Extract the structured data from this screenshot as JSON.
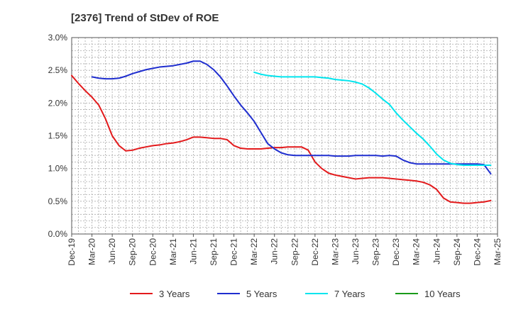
{
  "chart_data": {
    "type": "line",
    "title": "[2376]  Trend of StDev of ROE",
    "xlabel": "",
    "ylabel": "",
    "x_ticks": [
      "Dec-19",
      "Mar-20",
      "Jun-20",
      "Sep-20",
      "Dec-20",
      "Mar-21",
      "Jun-21",
      "Sep-21",
      "Dec-21",
      "Mar-22",
      "Jun-22",
      "Sep-22",
      "Dec-22",
      "Mar-23",
      "Jun-23",
      "Sep-23",
      "Dec-23",
      "Mar-24",
      "Jun-24",
      "Sep-24",
      "Dec-24",
      "Mar-25"
    ],
    "y_ticks": [
      "0.0%",
      "0.5%",
      "1.0%",
      "1.5%",
      "2.0%",
      "2.5%",
      "3.0%"
    ],
    "ylim": [
      0,
      3.0
    ],
    "grid": "dashed",
    "legend_position": "bottom",
    "series": [
      {
        "name": "3 Years",
        "color": "#e31a1c",
        "points": [
          [
            0,
            2.42
          ],
          [
            1,
            2.3
          ],
          [
            2,
            2.19
          ],
          [
            3,
            2.09
          ],
          [
            4,
            1.97
          ],
          [
            5,
            1.76
          ],
          [
            6,
            1.5
          ],
          [
            7,
            1.35
          ],
          [
            8,
            1.27
          ],
          [
            9,
            1.28
          ],
          [
            10,
            1.31
          ],
          [
            11,
            1.33
          ],
          [
            12,
            1.35
          ],
          [
            13,
            1.36
          ],
          [
            14,
            1.38
          ],
          [
            15,
            1.39
          ],
          [
            16,
            1.41
          ],
          [
            17,
            1.44
          ],
          [
            18,
            1.48
          ],
          [
            19,
            1.48
          ],
          [
            20,
            1.47
          ],
          [
            21,
            1.46
          ],
          [
            22,
            1.46
          ],
          [
            23,
            1.44
          ],
          [
            24,
            1.35
          ],
          [
            25,
            1.31
          ],
          [
            26,
            1.3
          ],
          [
            27,
            1.3
          ],
          [
            28,
            1.3
          ],
          [
            29,
            1.31
          ],
          [
            30,
            1.32
          ],
          [
            31,
            1.32
          ],
          [
            32,
            1.33
          ],
          [
            33,
            1.33
          ],
          [
            34,
            1.33
          ],
          [
            35,
            1.28
          ],
          [
            36,
            1.1
          ],
          [
            37,
            1.0
          ],
          [
            38,
            0.93
          ],
          [
            39,
            0.9
          ],
          [
            40,
            0.88
          ],
          [
            41,
            0.86
          ],
          [
            42,
            0.84
          ],
          [
            43,
            0.85
          ],
          [
            44,
            0.86
          ],
          [
            45,
            0.86
          ],
          [
            46,
            0.86
          ],
          [
            47,
            0.85
          ],
          [
            48,
            0.84
          ],
          [
            49,
            0.83
          ],
          [
            50,
            0.82
          ],
          [
            51,
            0.81
          ],
          [
            52,
            0.79
          ],
          [
            53,
            0.75
          ],
          [
            54,
            0.68
          ],
          [
            55,
            0.55
          ],
          [
            56,
            0.49
          ],
          [
            57,
            0.48
          ],
          [
            58,
            0.47
          ],
          [
            59,
            0.47
          ],
          [
            60,
            0.48
          ],
          [
            61,
            0.49
          ],
          [
            62,
            0.51
          ]
        ]
      },
      {
        "name": "5 Years",
        "color": "#1f2ecf",
        "points": [
          [
            3,
            2.4
          ],
          [
            4,
            2.38
          ],
          [
            5,
            2.37
          ],
          [
            6,
            2.37
          ],
          [
            7,
            2.38
          ],
          [
            8,
            2.41
          ],
          [
            9,
            2.45
          ],
          [
            10,
            2.48
          ],
          [
            11,
            2.51
          ],
          [
            12,
            2.53
          ],
          [
            13,
            2.55
          ],
          [
            14,
            2.56
          ],
          [
            15,
            2.57
          ],
          [
            16,
            2.59
          ],
          [
            17,
            2.61
          ],
          [
            18,
            2.64
          ],
          [
            19,
            2.64
          ],
          [
            20,
            2.59
          ],
          [
            21,
            2.51
          ],
          [
            22,
            2.4
          ],
          [
            23,
            2.26
          ],
          [
            24,
            2.11
          ],
          [
            25,
            1.97
          ],
          [
            26,
            1.85
          ],
          [
            27,
            1.72
          ],
          [
            28,
            1.55
          ],
          [
            29,
            1.38
          ],
          [
            30,
            1.3
          ],
          [
            31,
            1.24
          ],
          [
            32,
            1.21
          ],
          [
            33,
            1.2
          ],
          [
            34,
            1.2
          ],
          [
            35,
            1.2
          ],
          [
            36,
            1.2
          ],
          [
            37,
            1.2
          ],
          [
            38,
            1.2
          ],
          [
            39,
            1.19
          ],
          [
            40,
            1.19
          ],
          [
            41,
            1.19
          ],
          [
            42,
            1.2
          ],
          [
            43,
            1.2
          ],
          [
            44,
            1.2
          ],
          [
            45,
            1.2
          ],
          [
            46,
            1.19
          ],
          [
            47,
            1.2
          ],
          [
            48,
            1.19
          ],
          [
            49,
            1.13
          ],
          [
            50,
            1.09
          ],
          [
            51,
            1.07
          ],
          [
            52,
            1.07
          ],
          [
            53,
            1.07
          ],
          [
            54,
            1.07
          ],
          [
            55,
            1.07
          ],
          [
            56,
            1.07
          ],
          [
            57,
            1.07
          ],
          [
            58,
            1.07
          ],
          [
            59,
            1.07
          ],
          [
            60,
            1.07
          ],
          [
            61,
            1.06
          ],
          [
            62,
            0.92
          ]
        ]
      },
      {
        "name": "7 Years",
        "color": "#00e5ee",
        "points": [
          [
            27,
            2.47
          ],
          [
            28,
            2.44
          ],
          [
            29,
            2.42
          ],
          [
            30,
            2.41
          ],
          [
            31,
            2.4
          ],
          [
            32,
            2.4
          ],
          [
            33,
            2.4
          ],
          [
            34,
            2.4
          ],
          [
            35,
            2.4
          ],
          [
            36,
            2.4
          ],
          [
            37,
            2.39
          ],
          [
            38,
            2.38
          ],
          [
            39,
            2.36
          ],
          [
            40,
            2.35
          ],
          [
            41,
            2.34
          ],
          [
            42,
            2.32
          ],
          [
            43,
            2.29
          ],
          [
            44,
            2.23
          ],
          [
            45,
            2.15
          ],
          [
            46,
            2.06
          ],
          [
            47,
            1.98
          ],
          [
            48,
            1.85
          ],
          [
            49,
            1.74
          ],
          [
            50,
            1.64
          ],
          [
            51,
            1.54
          ],
          [
            52,
            1.45
          ],
          [
            53,
            1.34
          ],
          [
            54,
            1.22
          ],
          [
            55,
            1.13
          ],
          [
            56,
            1.08
          ],
          [
            57,
            1.06
          ],
          [
            58,
            1.05
          ],
          [
            59,
            1.05
          ],
          [
            60,
            1.05
          ],
          [
            61,
            1.05
          ],
          [
            62,
            1.05
          ]
        ]
      },
      {
        "name": "10 Years",
        "color": "#1a9a1a",
        "points": []
      }
    ]
  }
}
